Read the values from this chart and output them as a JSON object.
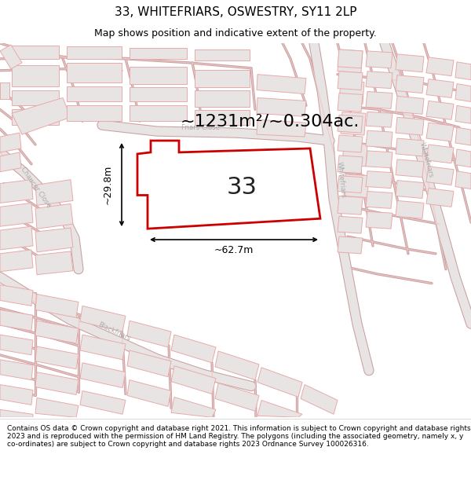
{
  "title": "33, WHITEFRIARS, OSWESTRY, SY11 2LP",
  "subtitle": "Map shows position and indicative extent of the property.",
  "footer": "Contains OS data © Crown copyright and database right 2021. This information is subject to Crown copyright and database rights 2023 and is reproduced with the permission of HM Land Registry. The polygons (including the associated geometry, namely x, y co-ordinates) are subject to Crown copyright and database rights 2023 Ordnance Survey 100026316.",
  "plot_label": "33",
  "area_text": "~1231m²/~0.304ac.",
  "width_label": "~62.7m",
  "height_label": "~29.8m",
  "map_bg": "#f5f3f3",
  "building_fc": "#e8e4e4",
  "building_ec": "#e8aaaa",
  "road_line": "#e0a0a0",
  "road_outline": "#c8a0a0",
  "road_label_color": "#aaaaaa",
  "plot_fill": "#ffffff",
  "plot_edge": "#cc0000",
  "title_fontsize": 11,
  "subtitle_fontsize": 9,
  "footer_fontsize": 6.5,
  "area_fontsize": 16,
  "label_fontsize": 22,
  "dim_fontsize": 9
}
